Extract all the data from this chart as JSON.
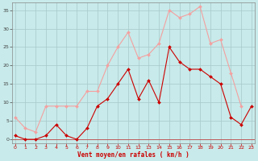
{
  "x": [
    0,
    1,
    2,
    3,
    4,
    5,
    6,
    7,
    8,
    9,
    10,
    11,
    12,
    13,
    14,
    15,
    16,
    17,
    18,
    19,
    20,
    21,
    22,
    23
  ],
  "rafales": [
    6,
    3,
    2,
    9,
    9,
    9,
    9,
    13,
    13,
    20,
    25,
    29,
    22,
    23,
    26,
    35,
    33,
    34,
    36,
    26,
    27,
    18,
    9,
    null
  ],
  "moyen": [
    1,
    0,
    0,
    1,
    4,
    1,
    0,
    3,
    9,
    11,
    15,
    19,
    11,
    16,
    10,
    25,
    21,
    19,
    19,
    17,
    15,
    6,
    4,
    9
  ],
  "color_rafales": "#f4a0a0",
  "color_moyen": "#cc0000",
  "bg_color": "#c8eaea",
  "grid_color": "#a8c8c8",
  "xlabel": "Vent moyen/en rafales ( km/h )",
  "xlabel_color": "#cc0000",
  "yticks": [
    0,
    5,
    10,
    15,
    20,
    25,
    30,
    35
  ],
  "ylim": [
    -1,
    37
  ],
  "xlim": [
    -0.3,
    23.3
  ],
  "xticks": [
    0,
    1,
    2,
    3,
    4,
    5,
    6,
    7,
    8,
    9,
    10,
    11,
    12,
    13,
    14,
    15,
    16,
    17,
    18,
    19,
    20,
    21,
    22,
    23
  ]
}
